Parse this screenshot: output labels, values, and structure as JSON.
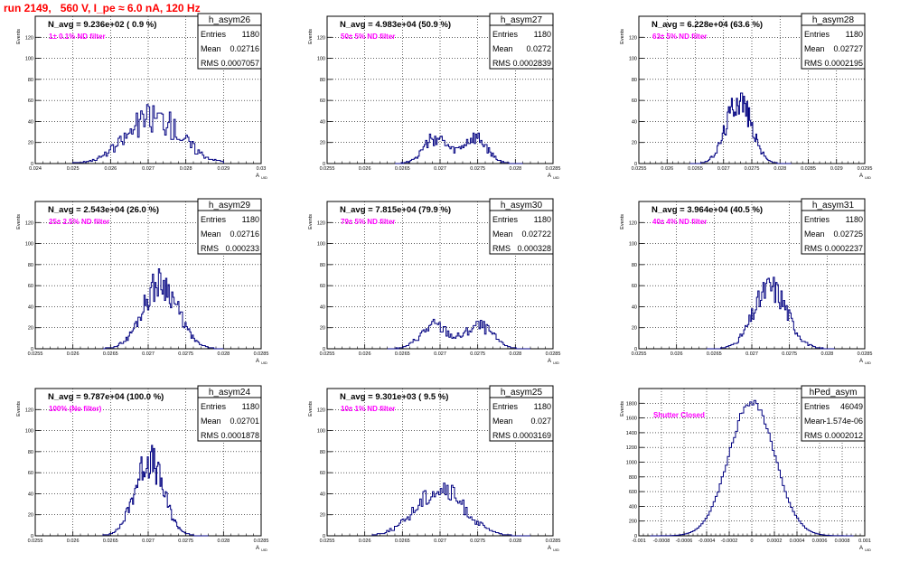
{
  "title": "run 2149,   560 V, I_pe ≈ 6.0 nA, 120 Hz",
  "colors": {
    "hist": "#000080",
    "title": "#ff0000",
    "annotation": "#ff00ff",
    "grid": "#000000"
  },
  "stats_labels": {
    "entries": "Entries",
    "mean": "Mean",
    "rms": "RMS"
  },
  "y_axis_label": "Events",
  "x_axis_label": "A",
  "x_axis_subscript": "UID",
  "chart_data": [
    {
      "type": "histogram",
      "name": "h_asym26",
      "navg": "N_avg = 9.236e+02 ( 0.9 %)",
      "note": "1± 0.1% ND filter",
      "stats": {
        "entries": "1180",
        "mean": "0.02716",
        "rms": "0.0007057"
      },
      "xlim": [
        0.024,
        0.03
      ],
      "ylim": [
        0,
        140
      ],
      "xticks": [
        "0.024",
        "0.025",
        "0.026",
        "0.027",
        "0.028",
        "0.029",
        "0.03"
      ],
      "yticks": [
        "0",
        "20",
        "40",
        "60",
        "80",
        "100",
        "120"
      ],
      "hist": {
        "mean": 0.02716,
        "sigma": 0.00072,
        "peak": 44,
        "noise": 0.35,
        "range": [
          0.025,
          0.029
        ],
        "nbins": 100,
        "seed": 26
      }
    },
    {
      "type": "histogram",
      "name": "h_asym27",
      "navg": "N_avg = 4.983e+04 (50.9 %)",
      "note": "50± 5% ND filter",
      "stats": {
        "entries": "1180",
        "mean": "0.0272",
        "rms": "0.0002839"
      },
      "xlim": [
        0.0255,
        0.0285
      ],
      "ylim": [
        0,
        140
      ],
      "xticks": [
        "0.0255",
        "0.026",
        "0.0265",
        "0.027",
        "0.0275",
        "0.028",
        "0.0285"
      ],
      "yticks": [
        "0",
        "20",
        "40",
        "60",
        "80",
        "100",
        "120"
      ],
      "hist": {
        "mean": 0.0272,
        "sigma": 0.00029,
        "peak": 45,
        "noise": 0.3,
        "range": [
          0.0264,
          0.0281
        ],
        "nbins": 100,
        "seed": 27,
        "bimodal": true
      }
    },
    {
      "type": "histogram",
      "name": "h_asym28",
      "navg": "N_avg = 6.228e+04 (63.6 %)",
      "note": "63± 5% ND filter",
      "stats": {
        "entries": "1180",
        "mean": "0.02727",
        "rms": "0.0002195"
      },
      "xlim": [
        0.0255,
        0.0295
      ],
      "ylim": [
        0,
        140
      ],
      "xticks": [
        "0.0255",
        "0.026",
        "0.0265",
        "0.027",
        "0.0275",
        "0.028",
        "0.0285",
        "0.029",
        "0.0295"
      ],
      "yticks": [
        "0",
        "20",
        "40",
        "60",
        "80",
        "100",
        "120"
      ],
      "hist": {
        "mean": 0.02727,
        "sigma": 0.00022,
        "peak": 62,
        "noise": 0.25,
        "range": [
          0.0264,
          0.0282
        ],
        "nbins": 100,
        "seed": 28
      }
    },
    {
      "type": "histogram",
      "name": "h_asym29",
      "navg": "N_avg = 2.543e+04 (26.0 %)",
      "note": "25± 2.5% ND filter",
      "stats": {
        "entries": "1180",
        "mean": "0.02716",
        "rms": "0.000233"
      },
      "xlim": [
        0.0255,
        0.0285
      ],
      "ylim": [
        0,
        140
      ],
      "xticks": [
        "0.0255",
        "0.026",
        "0.0265",
        "0.027",
        "0.0275",
        "0.028",
        "0.0285"
      ],
      "yticks": [
        "0",
        "20",
        "40",
        "60",
        "80",
        "100",
        "120"
      ],
      "hist": {
        "mean": 0.02716,
        "sigma": 0.00023,
        "peak": 63,
        "noise": 0.25,
        "range": [
          0.0264,
          0.028
        ],
        "nbins": 100,
        "seed": 29
      }
    },
    {
      "type": "histogram",
      "name": "h_asym30",
      "navg": "N_avg = 7.815e+04 (79.9 %)",
      "note": "79± 5% ND filter",
      "stats": {
        "entries": "1180",
        "mean": "0.02722",
        "rms": "0.000328"
      },
      "xlim": [
        0.0255,
        0.0285
      ],
      "ylim": [
        0,
        140
      ],
      "xticks": [
        "0.0255",
        "0.026",
        "0.0265",
        "0.027",
        "0.0275",
        "0.028",
        "0.0285"
      ],
      "yticks": [
        "0",
        "20",
        "40",
        "60",
        "80",
        "100",
        "120"
      ],
      "hist": {
        "mean": 0.02722,
        "sigma": 0.00033,
        "peak": 42,
        "noise": 0.3,
        "range": [
          0.0263,
          0.0282
        ],
        "nbins": 100,
        "seed": 30,
        "bimodal": true
      }
    },
    {
      "type": "histogram",
      "name": "h_asym31",
      "navg": "N_avg = 3.964e+04 (40.5 %)",
      "note": "40± 4% ND filter",
      "stats": {
        "entries": "1180",
        "mean": "0.02725",
        "rms": "0.0002237"
      },
      "xlim": [
        0.0255,
        0.0285
      ],
      "ylim": [
        0,
        140
      ],
      "xticks": [
        "0.0255",
        "0.026",
        "0.0265",
        "0.027",
        "0.0275",
        "0.028",
        "0.0285"
      ],
      "yticks": [
        "0",
        "20",
        "40",
        "60",
        "80",
        "100",
        "120"
      ],
      "hist": {
        "mean": 0.02725,
        "sigma": 0.00022,
        "peak": 58,
        "noise": 0.25,
        "range": [
          0.0264,
          0.0281
        ],
        "nbins": 100,
        "seed": 31
      }
    },
    {
      "type": "histogram",
      "name": "h_asym24",
      "navg": "N_avg = 9.787e+04 (100.0 %)",
      "note": "100% (No filter)",
      "stats": {
        "entries": "1180",
        "mean": "0.02701",
        "rms": "0.0001878"
      },
      "xlim": [
        0.0255,
        0.0285
      ],
      "ylim": [
        0,
        140
      ],
      "xticks": [
        "0.0255",
        "0.026",
        "0.0265",
        "0.027",
        "0.0275",
        "0.028",
        "0.0285"
      ],
      "yticks": [
        "0",
        "20",
        "40",
        "60",
        "80",
        "100",
        "120"
      ],
      "hist": {
        "mean": 0.02701,
        "sigma": 0.00019,
        "peak": 72,
        "noise": 0.25,
        "range": [
          0.0264,
          0.0278
        ],
        "nbins": 100,
        "seed": 24
      }
    },
    {
      "type": "histogram",
      "name": "h_asym25",
      "navg": "N_avg = 9.301e+03 ( 9.5 %)",
      "note": "10± 1% ND filter",
      "stats": {
        "entries": "1180",
        "mean": "0.027",
        "rms": "0.0003169"
      },
      "xlim": [
        0.0255,
        0.0285
      ],
      "ylim": [
        0,
        140
      ],
      "xticks": [
        "0.0255",
        "0.026",
        "0.0265",
        "0.027",
        "0.0275",
        "0.028",
        "0.0285"
      ],
      "yticks": [
        "0",
        "20",
        "40",
        "60",
        "80",
        "100",
        "120"
      ],
      "hist": {
        "mean": 0.027,
        "sigma": 0.00032,
        "peak": 44,
        "noise": 0.25,
        "range": [
          0.0261,
          0.0282
        ],
        "nbins": 100,
        "seed": 25
      }
    },
    {
      "type": "histogram",
      "name": "hPed_asym",
      "navg": "",
      "note": "Shutter Closed",
      "stats": {
        "entries": "46049",
        "mean": "-1.574e-06",
        "rms": "0.0002012"
      },
      "xlim": [
        -0.001,
        0.001
      ],
      "ylim": [
        0,
        2000
      ],
      "xticks": [
        "-0.001",
        "-0.0008",
        "-0.0006",
        "-0.0004",
        "-0.0002",
        "0",
        "0.0002",
        "0.0004",
        "0.0006",
        "0.0008",
        "0.001"
      ],
      "yticks": [
        "0",
        "200",
        "400",
        "600",
        "800",
        "1000",
        "1200",
        "1400",
        "1600",
        "1800"
      ],
      "hist": {
        "mean": 0.0,
        "sigma": 0.0002,
        "peak": 1830,
        "noise": 0.03,
        "range": [
          -0.0009,
          0.0009
        ],
        "nbins": 100,
        "seed": 99
      }
    }
  ]
}
